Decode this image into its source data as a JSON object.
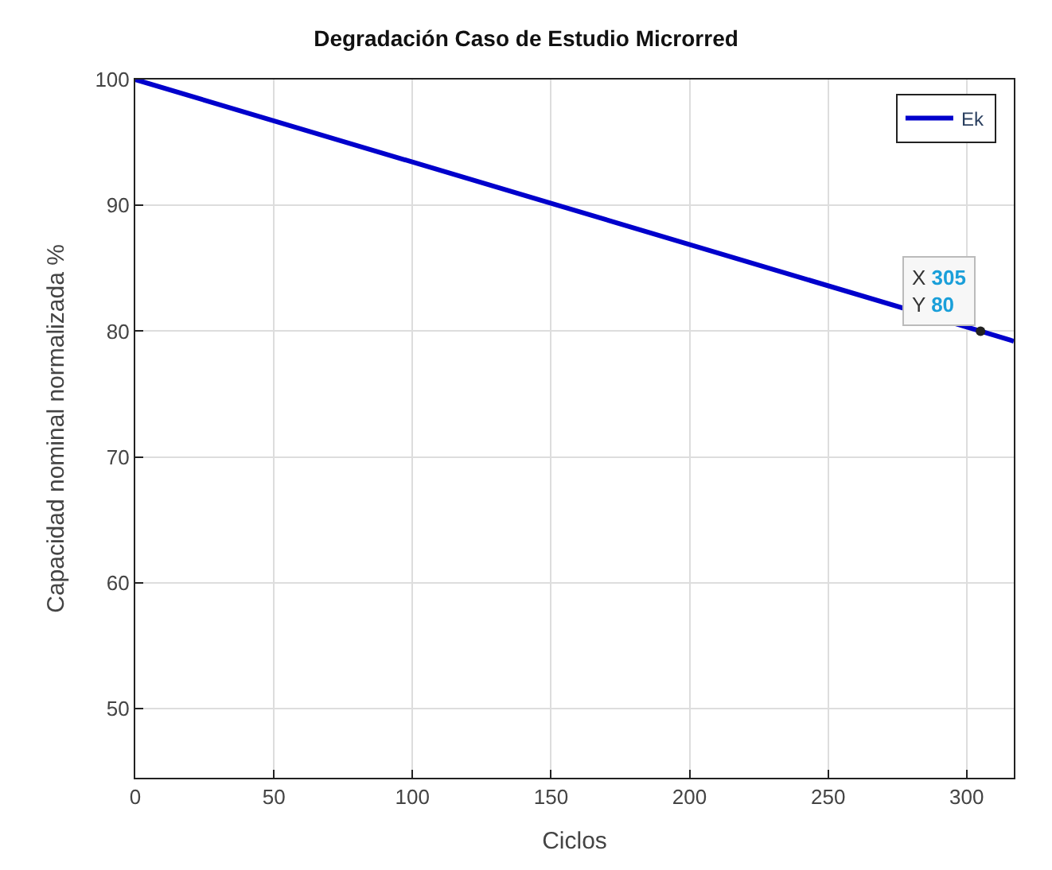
{
  "chart_data": {
    "type": "line",
    "title": "Degradación Caso de Estudio Microrred",
    "xlabel": "Ciclos",
    "ylabel": "Capacidad nominal normalizada %",
    "x": [
      0,
      305,
      317
    ],
    "series": [
      {
        "name": "Ek",
        "color": "#0000cc",
        "values": [
          100,
          80,
          79.2
        ]
      }
    ],
    "annotations": [
      {
        "text": "X 305\nY 80",
        "x": 305,
        "y": 80
      }
    ],
    "xlim": [
      0,
      317
    ],
    "xticks": [
      0,
      50,
      100,
      150,
      200,
      250,
      300
    ],
    "ylim": [
      44.5,
      100
    ],
    "yticks": [
      50,
      60,
      70,
      80,
      90,
      100
    ],
    "grid": true,
    "legend": "top right",
    "marker": "none",
    "line_style": "solid"
  }
}
